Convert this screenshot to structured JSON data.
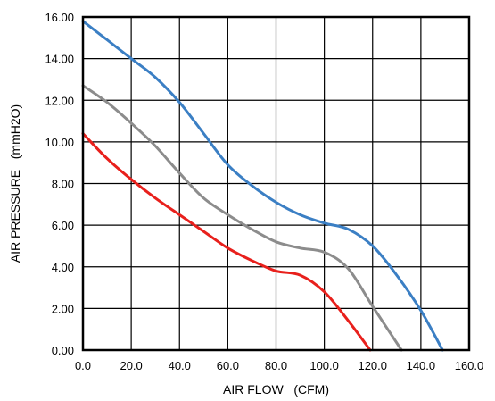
{
  "chart_data": {
    "type": "line",
    "title": "",
    "xlabel": "AIR FLOW   (CFM)",
    "ylabel": "AIR PRESSURE   (mmH2O)",
    "xlim": [
      0,
      160
    ],
    "ylim": [
      0,
      16
    ],
    "x_ticks": [
      "0.0",
      "20.0",
      "40.0",
      "60.0",
      "80.0",
      "100.0",
      "120.0",
      "140.0",
      "160.0"
    ],
    "y_ticks": [
      "0.00",
      "2.00",
      "4.00",
      "6.00",
      "8.00",
      "10.00",
      "12.00",
      "14.00",
      "16.00"
    ],
    "grid": true,
    "legend": "none",
    "series": [
      {
        "color": "#3b7fc4",
        "points": [
          [
            0,
            15.8
          ],
          [
            10,
            14.9
          ],
          [
            20,
            14.0
          ],
          [
            30,
            13.1
          ],
          [
            40,
            11.9
          ],
          [
            50,
            10.4
          ],
          [
            60,
            8.9
          ],
          [
            70,
            7.9
          ],
          [
            80,
            7.1
          ],
          [
            90,
            6.5
          ],
          [
            100,
            6.1
          ],
          [
            110,
            5.8
          ],
          [
            120,
            5.0
          ],
          [
            130,
            3.6
          ],
          [
            140,
            1.9
          ],
          [
            149,
            0
          ]
        ]
      },
      {
        "color": "#8c8c8c",
        "points": [
          [
            0,
            12.7
          ],
          [
            10,
            11.9
          ],
          [
            20,
            10.9
          ],
          [
            30,
            9.8
          ],
          [
            40,
            8.5
          ],
          [
            50,
            7.3
          ],
          [
            60,
            6.5
          ],
          [
            70,
            5.8
          ],
          [
            80,
            5.2
          ],
          [
            90,
            4.9
          ],
          [
            100,
            4.7
          ],
          [
            110,
            3.9
          ],
          [
            120,
            2.1
          ],
          [
            132,
            0
          ]
        ]
      },
      {
        "color": "#e8201c",
        "points": [
          [
            0,
            10.4
          ],
          [
            10,
            9.2
          ],
          [
            20,
            8.2
          ],
          [
            30,
            7.3
          ],
          [
            40,
            6.5
          ],
          [
            50,
            5.7
          ],
          [
            60,
            4.9
          ],
          [
            70,
            4.3
          ],
          [
            80,
            3.8
          ],
          [
            90,
            3.6
          ],
          [
            100,
            2.8
          ],
          [
            110,
            1.4
          ],
          [
            119,
            0
          ]
        ]
      }
    ]
  }
}
